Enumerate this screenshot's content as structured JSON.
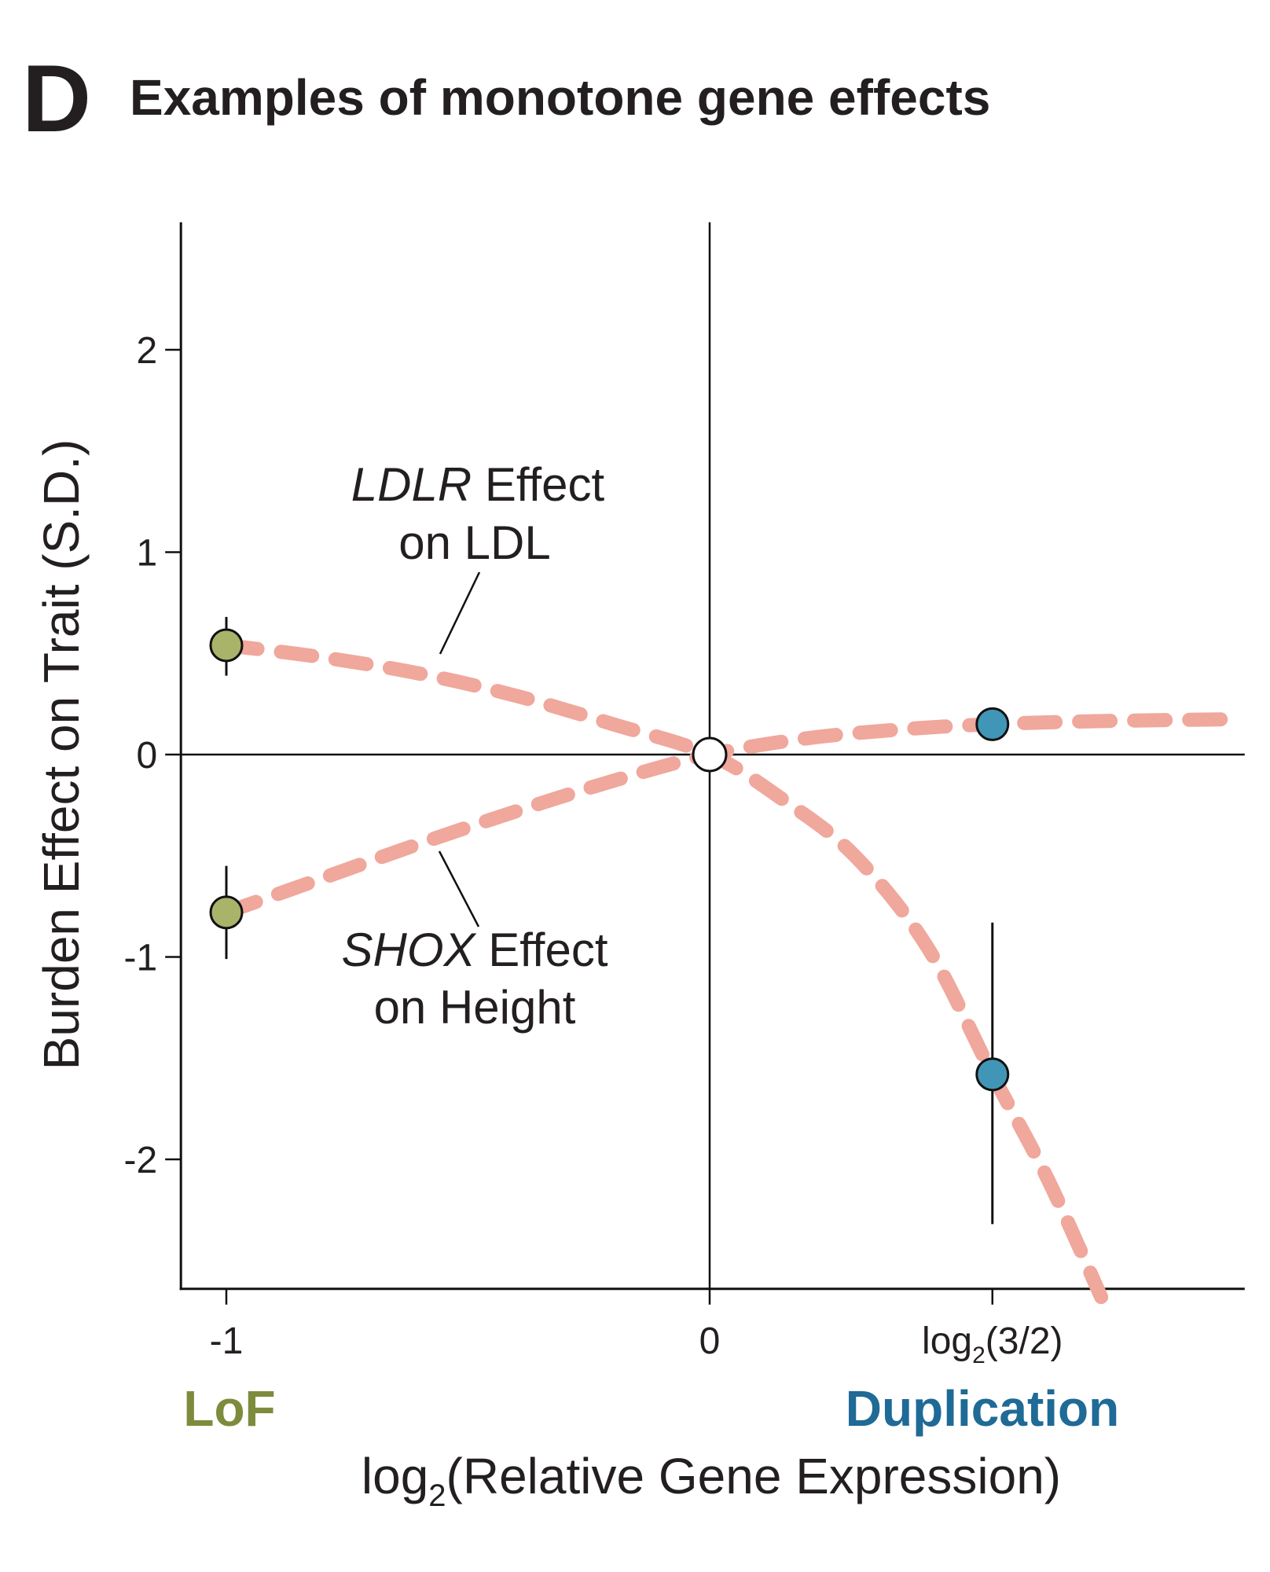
{
  "panel_letter": "D",
  "title": "Examples of monotone gene effects",
  "chart_data": {
    "type": "line",
    "title": "Examples of monotone gene effects",
    "xlabel": {
      "prefix": "log",
      "subscript": "2",
      "rest": "(Relative Gene Expression)"
    },
    "ylabel": "Burden Effect on Trait (S.D.)",
    "xlim": [
      -1.094,
      1.107
    ],
    "ylim": [
      -2.64,
      2.63
    ],
    "grid": false,
    "reference_lines": {
      "x": 0,
      "y": 0
    },
    "yticks": [
      {
        "value": 2,
        "label": "2"
      },
      {
        "value": 1,
        "label": "1"
      },
      {
        "value": 0,
        "label": "0"
      },
      {
        "value": -1,
        "label": "-1"
      },
      {
        "value": -2,
        "label": "-2"
      }
    ],
    "xticks": [
      {
        "value": -1,
        "label": "-1"
      },
      {
        "value": 0,
        "label": "0"
      },
      {
        "value": 0.585,
        "label_prefix": "log",
        "label_sub": "2",
        "label_rest": "(3/2)"
      }
    ],
    "group_labels": [
      {
        "x": -1,
        "text": "LoF",
        "color": "#7d8c3c"
      },
      {
        "x": 0.585,
        "text": "Duplication",
        "color": "#1f6a96"
      }
    ],
    "curve_color": "#f0a79c",
    "series": [
      {
        "name": "LDLR Effect on LDL",
        "label_italic": "LDLR",
        "label_rest": " Effect",
        "label_line2": "on LDL",
        "curve": [
          [
            -1.0,
            0.54
          ],
          [
            -0.8,
            0.48
          ],
          [
            -0.6,
            0.4
          ],
          [
            -0.4,
            0.29
          ],
          [
            -0.2,
            0.15
          ],
          [
            0.0,
            0.0
          ],
          [
            0.15,
            -0.22
          ],
          [
            0.3,
            -0.5
          ],
          [
            0.45,
            -0.95
          ],
          [
            0.585,
            -1.58
          ],
          [
            0.7,
            -2.1
          ],
          [
            0.81,
            -2.68
          ]
        ],
        "points": [
          {
            "x": -1,
            "y": 0.54,
            "err_low": 0.39,
            "err_high": 0.68,
            "group": "LoF"
          },
          {
            "x": 0.585,
            "y": -1.58,
            "err_low": -2.32,
            "err_high": -0.83,
            "group": "Duplication"
          }
        ]
      },
      {
        "name": "SHOX Effect on Height",
        "label_italic": "SHOX",
        "label_rest": " Effect",
        "label_line2": "on Height",
        "curve": [
          [
            -1.0,
            -0.78
          ],
          [
            -0.8,
            -0.61
          ],
          [
            -0.6,
            -0.44
          ],
          [
            -0.4,
            -0.28
          ],
          [
            -0.2,
            -0.13
          ],
          [
            0.0,
            0.0
          ],
          [
            0.2,
            0.08
          ],
          [
            0.4,
            0.125
          ],
          [
            0.585,
            0.15
          ],
          [
            0.8,
            0.165
          ],
          [
            1.1,
            0.175
          ]
        ],
        "points": [
          {
            "x": -1,
            "y": -0.78,
            "err_low": -1.01,
            "err_high": -0.55,
            "group": "LoF"
          },
          {
            "x": 0.585,
            "y": 0.15,
            "err_low": null,
            "err_high": null,
            "group": "Duplication"
          }
        ]
      }
    ],
    "origin_point": {
      "x": 0,
      "y": 0,
      "fill": "#ffffff"
    },
    "point_colors": {
      "LoF": "#a9b36a",
      "Duplication": "#4196b8"
    }
  }
}
